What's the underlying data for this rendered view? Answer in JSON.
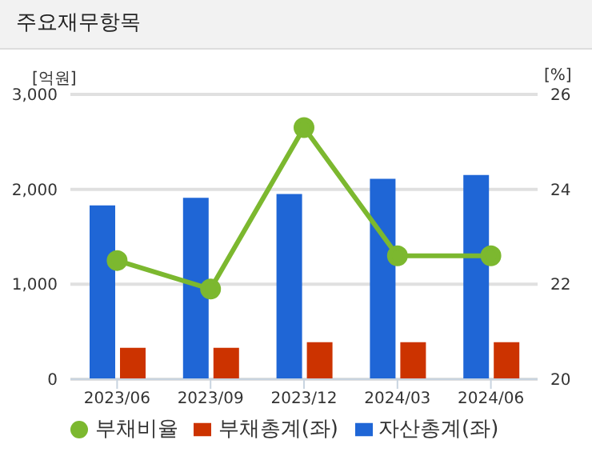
{
  "chart_data": {
    "type": "bar",
    "title": "주요재무항목",
    "ylabel": "[억원]",
    "y2label": "[%]",
    "categories": [
      "2023/06",
      "2023/09",
      "2023/12",
      "2024/03",
      "2024/06"
    ],
    "series": [
      {
        "name": "자산총계(좌)",
        "color": "#1f66d6",
        "values": [
          1830,
          1910,
          1950,
          2110,
          2150
        ]
      },
      {
        "name": "부채총계(좌)",
        "color": "#cc3300",
        "values": [
          330,
          330,
          390,
          390,
          390
        ]
      },
      {
        "name": "부채비율",
        "type": "line",
        "axis": "y2",
        "color": "#7cb82f",
        "values": [
          22.5,
          21.9,
          25.3,
          22.6,
          22.6
        ]
      }
    ],
    "ylim": [
      0,
      3000
    ],
    "yticks": [
      {
        "value": 0,
        "label": "0"
      },
      {
        "value": 1000,
        "label": "1,000"
      },
      {
        "value": 2000,
        "label": "2,000"
      },
      {
        "value": 3000,
        "label": "3,000"
      }
    ],
    "y2lim": [
      20,
      26
    ],
    "y2ticks": [
      20,
      22,
      24,
      26
    ],
    "grid": "y",
    "legend": "bottom",
    "marker": "circle"
  }
}
